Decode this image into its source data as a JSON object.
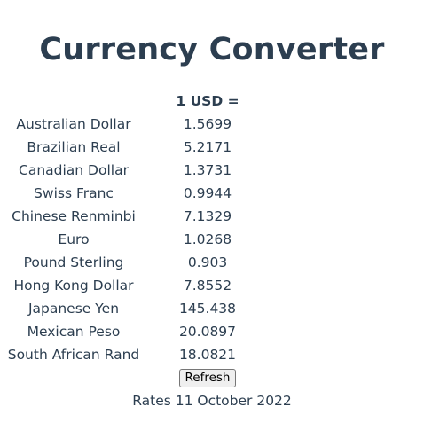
{
  "title": "Currency Converter",
  "table": {
    "header_rate": "1 USD =",
    "rows": [
      {
        "currency": "Australian Dollar",
        "rate": "1.5699"
      },
      {
        "currency": "Brazilian Real",
        "rate": "5.2171"
      },
      {
        "currency": "Canadian Dollar",
        "rate": "1.3731"
      },
      {
        "currency": "Swiss Franc",
        "rate": "0.9944"
      },
      {
        "currency": "Chinese Renminbi",
        "rate": "7.1329"
      },
      {
        "currency": "Euro",
        "rate": "1.0268"
      },
      {
        "currency": "Pound Sterling",
        "rate": "0.903"
      },
      {
        "currency": "Hong Kong Dollar",
        "rate": "7.8552"
      },
      {
        "currency": "Japanese Yen",
        "rate": "145.438"
      },
      {
        "currency": "Mexican Peso",
        "rate": "20.0897"
      },
      {
        "currency": "South African Rand",
        "rate": "18.0821"
      }
    ]
  },
  "refresh_label": "Refresh",
  "rates_date": "Rates 11 October 2022"
}
